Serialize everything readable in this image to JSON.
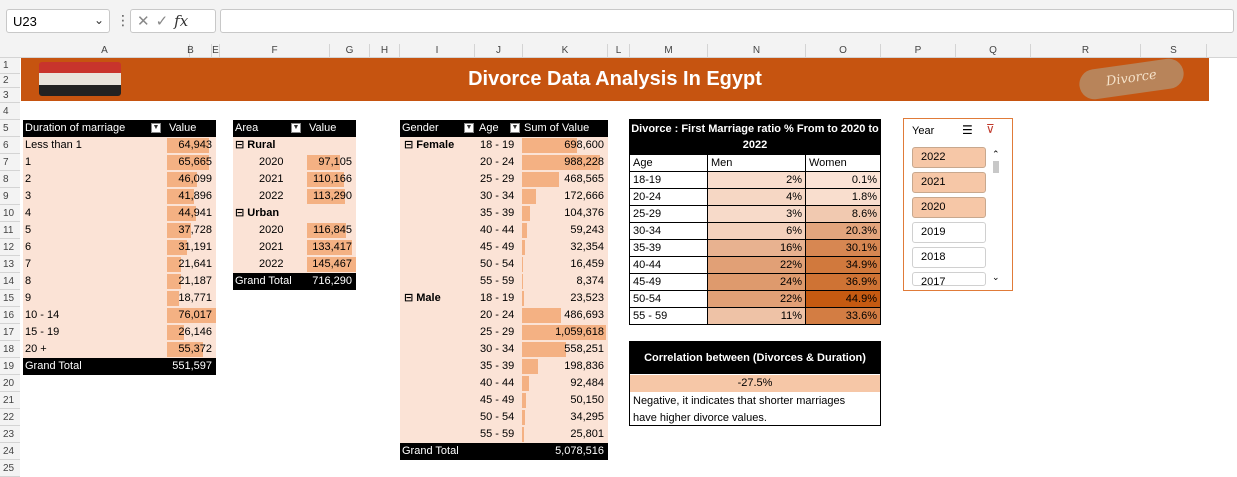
{
  "formula_bar": {
    "name_box": "U23"
  },
  "columns": [
    "A",
    "B",
    "E",
    "F",
    "G",
    "H",
    "I",
    "J",
    "K",
    "L",
    "M",
    "N",
    "O",
    "P",
    "Q",
    "R",
    "S"
  ],
  "rows": [
    "1",
    "2",
    "3",
    "4",
    "5",
    "6",
    "7",
    "8",
    "9",
    "10",
    "11",
    "12",
    "13",
    "14",
    "15",
    "16",
    "17",
    "18",
    "19",
    "20",
    "21",
    "22",
    "23",
    "24",
    "25"
  ],
  "banner": {
    "title": "Divorce Data Analysis In Egypt",
    "logo_text": "Divorce"
  },
  "duration_table": {
    "header": [
      "Duration of marriage",
      "Value"
    ],
    "rows": [
      {
        "label": "Less than 1",
        "value": "64,943",
        "v": 64943
      },
      {
        "label": "1",
        "value": "65,665",
        "v": 65665
      },
      {
        "label": "2",
        "value": "46,099",
        "v": 46099
      },
      {
        "label": "3",
        "value": "41,896",
        "v": 41896
      },
      {
        "label": "4",
        "value": "44,941",
        "v": 44941
      },
      {
        "label": "5",
        "value": "37,728",
        "v": 37728
      },
      {
        "label": "6",
        "value": "31,191",
        "v": 31191
      },
      {
        "label": "7",
        "value": "21,641",
        "v": 21641
      },
      {
        "label": "8",
        "value": "21,187",
        "v": 21187
      },
      {
        "label": "9",
        "value": "18,771",
        "v": 18771
      },
      {
        "label": "10 - 14",
        "value": "76,017",
        "v": 76017
      },
      {
        "label": "15 - 19",
        "value": "26,146",
        "v": 26146
      },
      {
        "label": "20 +",
        "value": "55,372",
        "v": 55372
      }
    ],
    "total_label": "Grand Total",
    "total_value": "551,597"
  },
  "area_table": {
    "header": [
      "Area",
      "Value"
    ],
    "groups": [
      {
        "name": "Rural",
        "rows": [
          {
            "label": "2020",
            "value": "97,105",
            "v": 97105
          },
          {
            "label": "2021",
            "value": "110,166",
            "v": 110166
          },
          {
            "label": "2022",
            "value": "113,290",
            "v": 113290
          }
        ]
      },
      {
        "name": "Urban",
        "rows": [
          {
            "label": "2020",
            "value": "116,845",
            "v": 116845
          },
          {
            "label": "2021",
            "value": "133,417",
            "v": 133417
          },
          {
            "label": "2022",
            "value": "145,467",
            "v": 145467
          }
        ]
      }
    ],
    "total_label": "Grand Total",
    "total_value": "716,290"
  },
  "gender_table": {
    "header": [
      "Gender",
      "Age",
      "Sum of Value"
    ],
    "groups": [
      {
        "name": "Female",
        "rows": [
          {
            "age": "18 - 19",
            "value": "698,600",
            "v": 698600
          },
          {
            "age": "20 - 24",
            "value": "988,228",
            "v": 988228
          },
          {
            "age": "25 - 29",
            "value": "468,565",
            "v": 468565
          },
          {
            "age": "30 - 34",
            "value": "172,666",
            "v": 172666
          },
          {
            "age": "35 - 39",
            "value": "104,376",
            "v": 104376
          },
          {
            "age": "40 - 44",
            "value": "59,243",
            "v": 59243
          },
          {
            "age": "45 - 49",
            "value": "32,354",
            "v": 32354
          },
          {
            "age": "50 - 54",
            "value": "16,459",
            "v": 16459
          },
          {
            "age": "55 - 59",
            "value": "8,374",
            "v": 8374
          }
        ]
      },
      {
        "name": "Male",
        "rows": [
          {
            "age": "18 - 19",
            "value": "23,523",
            "v": 23523
          },
          {
            "age": "20 - 24",
            "value": "486,693",
            "v": 486693
          },
          {
            "age": "25 - 29",
            "value": "1,059,618",
            "v": 1059618
          },
          {
            "age": "30 - 34",
            "value": "558,251",
            "v": 558251
          },
          {
            "age": "35 - 39",
            "value": "198,836",
            "v": 198836
          },
          {
            "age": "40 - 44",
            "value": "92,484",
            "v": 92484
          },
          {
            "age": "45 - 49",
            "value": "50,150",
            "v": 50150
          },
          {
            "age": "50 - 54",
            "value": "34,295",
            "v": 34295
          },
          {
            "age": "55 - 59",
            "value": "25,801",
            "v": 25801
          }
        ]
      }
    ],
    "total_label": "Grand Total",
    "total_value": "5,078,516"
  },
  "ratio_table": {
    "title": "Divorce : First Marriage ratio % From to 2020 to 2022",
    "header": [
      "Age",
      "Men",
      "Women"
    ],
    "rows": [
      {
        "age": "18-19",
        "men": "2%",
        "women": "0.1%",
        "m": 2,
        "w": 0.1
      },
      {
        "age": "20-24",
        "men": "4%",
        "women": "1.8%",
        "m": 4,
        "w": 1.8
      },
      {
        "age": "25-29",
        "men": "3%",
        "women": "8.6%",
        "m": 3,
        "w": 8.6
      },
      {
        "age": "30-34",
        "men": "6%",
        "women": "20.3%",
        "m": 6,
        "w": 20.3
      },
      {
        "age": "35-39",
        "men": "16%",
        "women": "30.1%",
        "m": 16,
        "w": 30.1
      },
      {
        "age": "40-44",
        "men": "22%",
        "women": "34.9%",
        "m": 22,
        "w": 34.9
      },
      {
        "age": "45-49",
        "men": "24%",
        "women": "36.9%",
        "m": 24,
        "w": 36.9
      },
      {
        "age": "50-54",
        "men": "22%",
        "women": "44.9%",
        "m": 22,
        "w": 44.9
      },
      {
        "age": "55 - 59",
        "men": "11%",
        "women": "33.6%",
        "m": 11,
        "w": 33.6
      }
    ]
  },
  "correlation": {
    "title": "Correlation between (Divorces & Duration)",
    "value": "-27.5%",
    "note_line1": "Negative, it indicates that shorter marriages",
    "note_line2": "have higher divorce values."
  },
  "slicer": {
    "title": "Year",
    "items": [
      {
        "label": "2022",
        "selected": true
      },
      {
        "label": "2021",
        "selected": true
      },
      {
        "label": "2020",
        "selected": true
      },
      {
        "label": "2019",
        "selected": false
      },
      {
        "label": "2018",
        "selected": false
      },
      {
        "label": "2017",
        "selected": false
      }
    ]
  },
  "colors": {
    "accent": "#c65410",
    "bar": "#f4b183",
    "peach": "#fbe3d6"
  }
}
